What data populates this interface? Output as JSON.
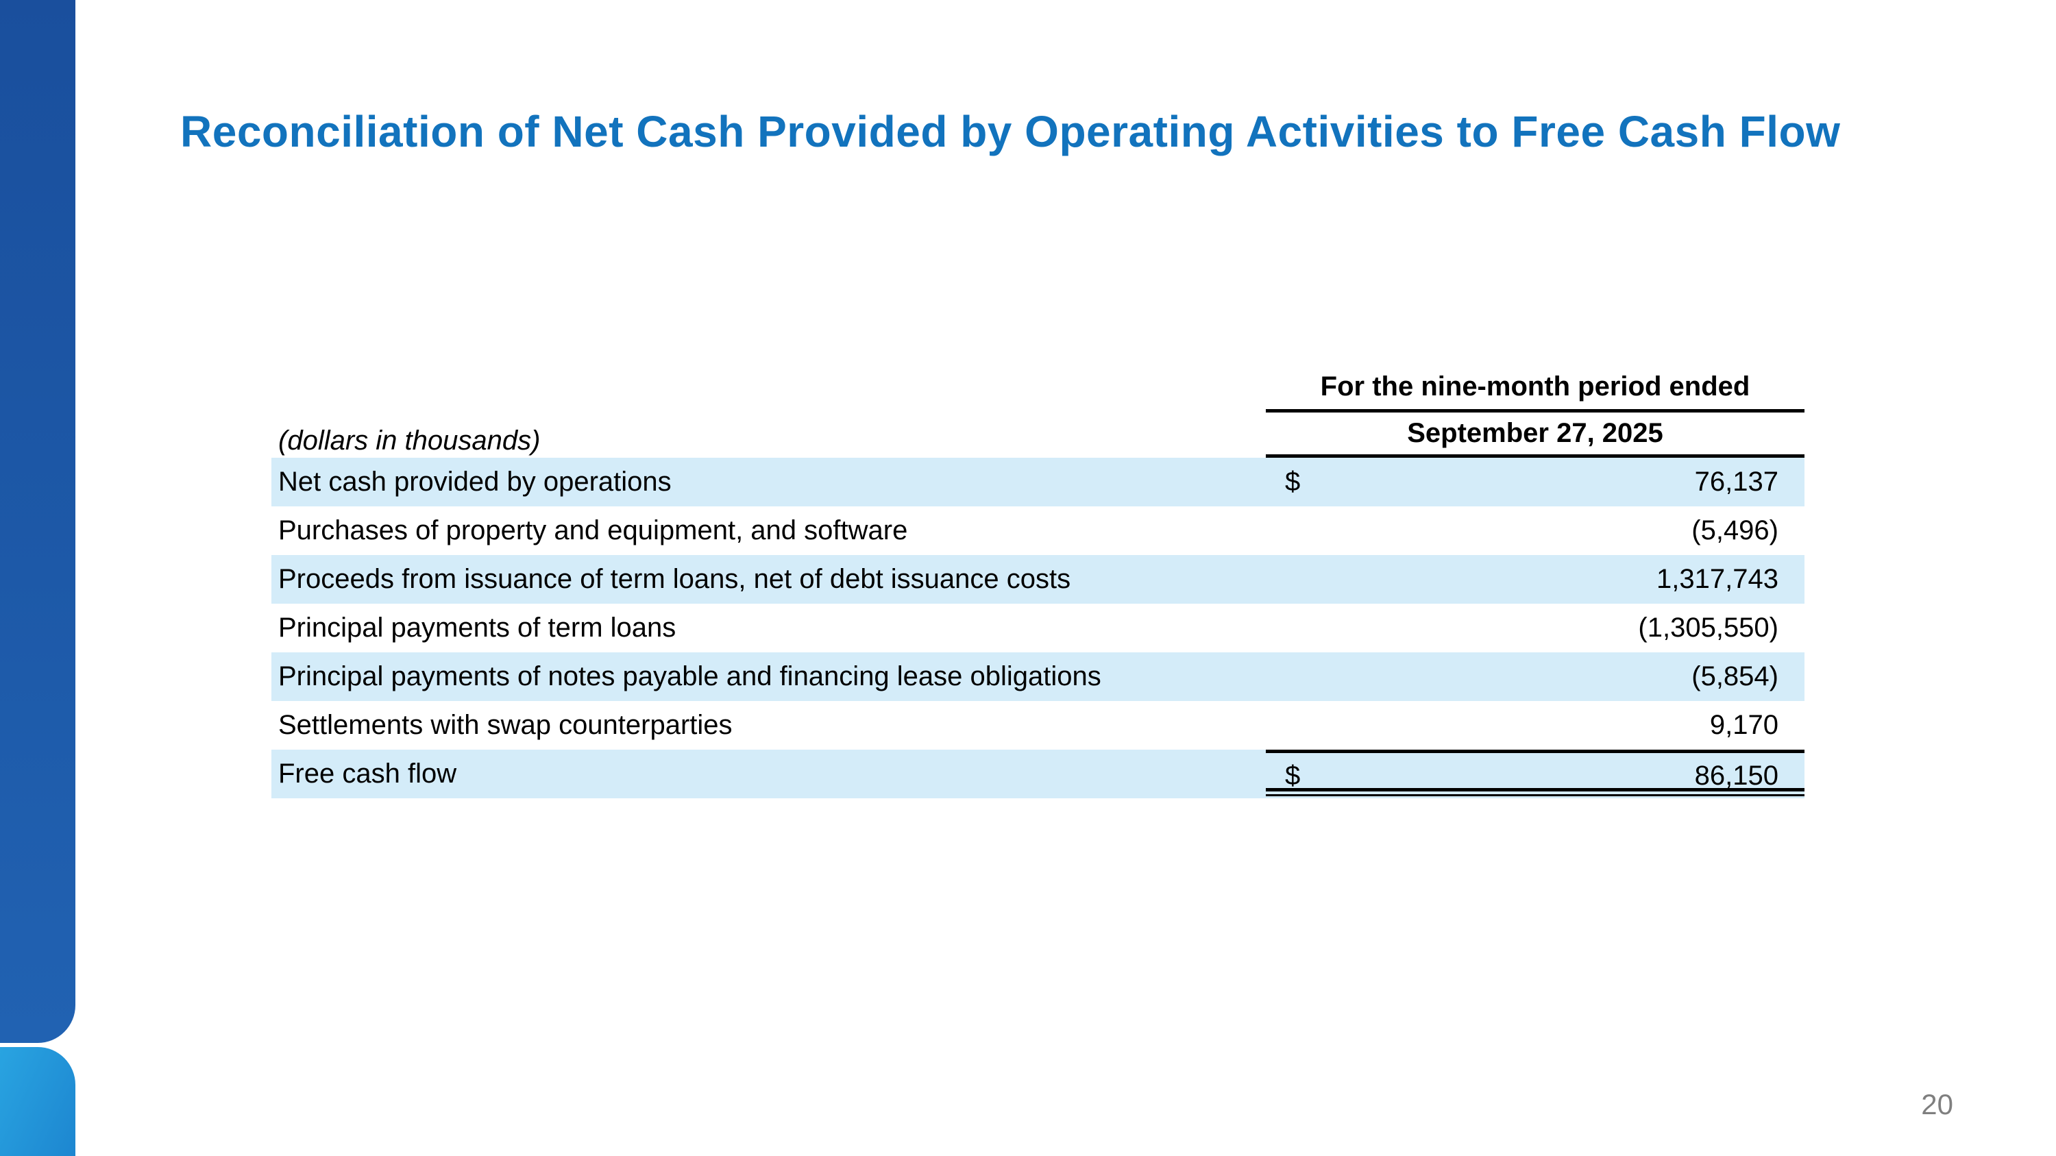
{
  "slide": {
    "title": "Reconciliation of Net Cash Provided by Operating Activities to Free Cash Flow",
    "page_number": "20"
  },
  "table": {
    "units_note": "(dollars in thousands)",
    "period_header": "For the nine-month period ended",
    "date_header": "September 27, 2025",
    "rows": [
      {
        "label": "Net cash provided by operations",
        "currency": "$",
        "value": "76,137"
      },
      {
        "label": "Purchases of property and equipment, and software",
        "value": "(5,496)"
      },
      {
        "label": "Proceeds from issuance of term loans, net of debt issuance costs",
        "value": "1,317,743"
      },
      {
        "label": "Principal payments of term loans",
        "value": "(1,305,550)"
      },
      {
        "label": "Principal payments of notes payable and financing lease obligations",
        "value": "(5,854)"
      },
      {
        "label": "Settlements with swap counterparties",
        "value": "9,170"
      },
      {
        "label": "Free cash flow",
        "currency": "$",
        "value": "86,150"
      }
    ]
  },
  "colors": {
    "title_blue": "#1273bd",
    "row_shading": "#d4ecf9",
    "accent_dark_blue": "#1d59a8",
    "accent_light_blue": "#2196db",
    "rule_black": "#000000",
    "page_number_gray": "#7f7f7f"
  }
}
